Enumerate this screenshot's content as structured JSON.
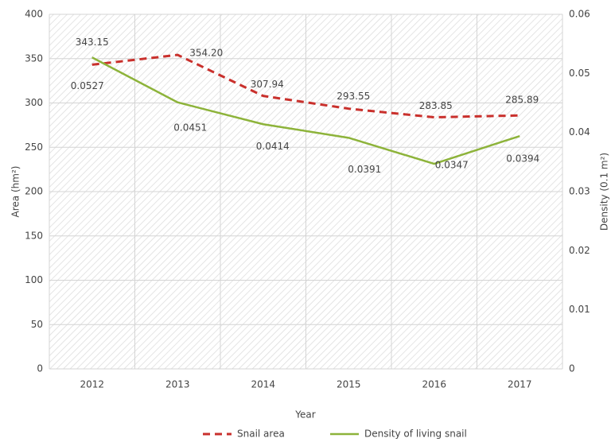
{
  "chart_data": {
    "type": "line",
    "categories": [
      "2012",
      "2013",
      "2014",
      "2015",
      "2016",
      "2017"
    ],
    "series": [
      {
        "name": "Snail area",
        "color": "#c9302c",
        "dashed": true,
        "values": [
          343.15,
          354.2,
          307.94,
          293.55,
          283.85,
          285.89
        ],
        "value_labels": [
          "343.15",
          "354.20",
          "307.94",
          "293.55",
          "283.85",
          "285.89"
        ]
      },
      {
        "name": "Density of living snail",
        "color": "#8db33a",
        "axis": "y2",
        "values": [
          0.0527,
          0.0451,
          0.0414,
          0.0391,
          0.0347,
          0.0394
        ]
      }
    ],
    "xlabel": "Year",
    "ylabel": "Area (hm²)",
    "y2label": "Density (0.1 m²)",
    "ylim": [
      0,
      400
    ],
    "yticks": [
      0,
      50,
      100,
      150,
      200,
      250,
      300,
      350,
      400
    ],
    "y2lim": [
      0,
      0.06
    ],
    "y2ticks": [
      0,
      0.01,
      0.02,
      0.03,
      0.04,
      0.05,
      0.06
    ],
    "grid": true,
    "legend": "bottom"
  }
}
